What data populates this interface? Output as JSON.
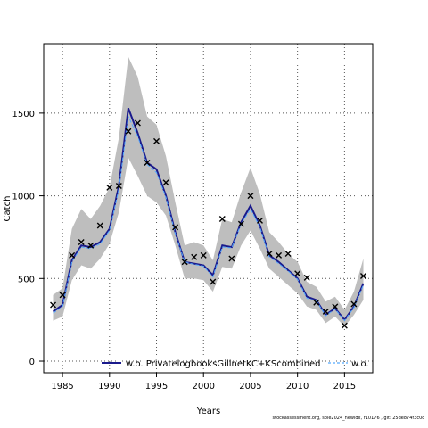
{
  "chart_data": {
    "type": "line",
    "title": "",
    "xlabel": "Years",
    "ylabel": "Catch",
    "xlim": [
      1983,
      2018
    ],
    "ylim": [
      -70,
      1920
    ],
    "xticks": [
      1985,
      1990,
      1995,
      2000,
      2005,
      2010,
      2015
    ],
    "yticks": [
      0,
      500,
      1000,
      1500
    ],
    "grid": true,
    "legend_position": "bottom",
    "legend": [
      {
        "name": "w.o. PrivatelogbooksGillnetKC+KScombined",
        "color": "#1a1a8c",
        "style": "solid"
      },
      {
        "name": "w.o. F",
        "color": "#55aaff",
        "style": "dashed"
      }
    ],
    "x": [
      1984,
      1985,
      1986,
      1987,
      1988,
      1989,
      1990,
      1991,
      1992,
      1993,
      1994,
      1995,
      1996,
      1997,
      1998,
      1999,
      2000,
      2001,
      2002,
      2003,
      2004,
      2005,
      2006,
      2007,
      2008,
      2009,
      2010,
      2011,
      2012,
      2013,
      2014,
      2015,
      2016,
      2017
    ],
    "series": [
      {
        "name": "w.o. PrivatelogbooksGillnetKC+KScombined",
        "color": "#1a1a8c",
        "values": [
          300,
          340,
          610,
          700,
          690,
          720,
          800,
          1060,
          1530,
          1380,
          1200,
          1160,
          1000,
          780,
          600,
          590,
          580,
          520,
          700,
          690,
          840,
          940,
          820,
          640,
          600,
          550,
          500,
          390,
          370,
          280,
          320,
          250,
          330,
          470
        ]
      },
      {
        "name": "w.o. F",
        "color": "#55aaff",
        "values": [
          290,
          330,
          600,
          690,
          680,
          710,
          790,
          1040,
          1480,
          1360,
          1190,
          1140,
          990,
          770,
          600,
          585,
          575,
          510,
          690,
          685,
          830,
          920,
          810,
          630,
          590,
          545,
          495,
          380,
          365,
          275,
          315,
          245,
          325,
          460
        ]
      }
    ],
    "band": {
      "color": "#bebebe",
      "lower": [
        245,
        270,
        490,
        580,
        560,
        620,
        710,
        900,
        1230,
        1120,
        1000,
        960,
        880,
        700,
        500,
        500,
        490,
        420,
        570,
        560,
        700,
        790,
        680,
        560,
        510,
        460,
        410,
        330,
        310,
        230,
        270,
        210,
        280,
        370
      ],
      "upper": [
        400,
        440,
        800,
        920,
        860,
        940,
        1050,
        1350,
        1840,
        1720,
        1480,
        1430,
        1240,
        960,
        700,
        720,
        700,
        610,
        860,
        840,
        1020,
        1170,
        1010,
        780,
        720,
        650,
        600,
        480,
        450,
        360,
        390,
        310,
        420,
        620
      ]
    },
    "observed": {
      "marker": "x",
      "values": [
        340,
        400,
        640,
        720,
        700,
        820,
        1050,
        1060,
        1390,
        1440,
        1200,
        1330,
        1080,
        810,
        600,
        630,
        640,
        480,
        860,
        620,
        830,
        1000,
        850,
        650,
        640,
        650,
        530,
        505,
        355,
        300,
        330,
        215,
        345,
        515
      ]
    }
  },
  "footer_text": "stockassessment.org, sole2024_newidx, r10176 , git: 25de874f3c0c"
}
